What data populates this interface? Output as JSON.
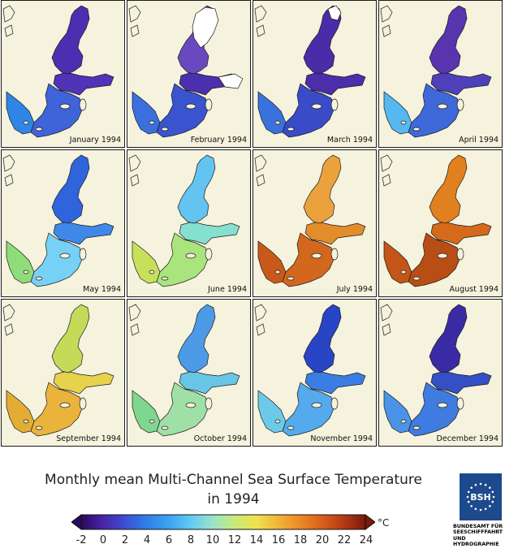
{
  "panels": [
    {
      "label": "January 1994",
      "colors": {
        "north": "#4c2fb0",
        "mid": "#5033b6",
        "south": "#3f63d8",
        "west": "#2f86e6"
      },
      "ice": 0
    },
    {
      "label": "February 1994",
      "colors": {
        "north": "#6a49c0",
        "mid": "#4a30ae",
        "south": "#3a53cf",
        "west": "#3b6fde"
      },
      "ice": 2
    },
    {
      "label": "March 1994",
      "colors": {
        "north": "#4a2ca8",
        "mid": "#4b2ea9",
        "south": "#3a4bc8",
        "west": "#3a72dd"
      },
      "ice": 1
    },
    {
      "label": "April 1994",
      "colors": {
        "north": "#5834ae",
        "mid": "#4e40bb",
        "south": "#3f68d9",
        "west": "#57b8f0"
      },
      "ice": 0
    },
    {
      "label": "May 1994",
      "colors": {
        "north": "#2f64dd",
        "mid": "#3f88e8",
        "south": "#77d0f5",
        "west": "#8fdc7a"
      },
      "ice": 0
    },
    {
      "label": "June 1994",
      "colors": {
        "north": "#63c3f1",
        "mid": "#86e0d0",
        "south": "#a9e47c",
        "west": "#c7e05a"
      },
      "ice": 0
    },
    {
      "label": "July 1994",
      "colors": {
        "north": "#eba23d",
        "mid": "#e28d2c",
        "south": "#d2671d",
        "west": "#c9591a"
      },
      "ice": 0
    },
    {
      "label": "August 1994",
      "colors": {
        "north": "#e0801f",
        "mid": "#d56a1c",
        "south": "#b84d16",
        "west": "#c45417"
      },
      "ice": 0
    },
    {
      "label": "September 1994",
      "colors": {
        "north": "#c5da58",
        "mid": "#e6d24b",
        "south": "#eab43c",
        "west": "#e3ad35"
      },
      "ice": 0
    },
    {
      "label": "October 1994",
      "colors": {
        "north": "#4d9be6",
        "mid": "#67c6e6",
        "south": "#9fe0a6",
        "west": "#7fd68f"
      },
      "ice": 0
    },
    {
      "label": "November 1994",
      "colors": {
        "north": "#2745c5",
        "mid": "#3a7ee3",
        "south": "#54aaec",
        "west": "#6ccae8"
      },
      "ice": 0
    },
    {
      "label": "December 1994",
      "colors": {
        "north": "#3a2ba5",
        "mid": "#3450c4",
        "south": "#3f7be0",
        "west": "#4a93e6"
      },
      "ice": 0
    }
  ],
  "title": {
    "line1": "Monthly mean Multi-Channel Sea Surface Temperature",
    "line2": "in 1994"
  },
  "colorbar": {
    "ticks": [
      "-2",
      "0",
      "2",
      "4",
      "6",
      "8",
      "10",
      "12",
      "14",
      "16",
      "18",
      "20",
      "22",
      "24"
    ],
    "unit": "°C",
    "colors": [
      "#2a0a5e",
      "#4a23a8",
      "#3c4fd2",
      "#2f7fe6",
      "#3aa3f0",
      "#62c9f2",
      "#9be3c9",
      "#c6ea7a",
      "#f0e24e",
      "#f3b43a",
      "#ec8a26",
      "#d9601b",
      "#b53a14",
      "#7a1a0c"
    ]
  },
  "logo": {
    "abbr": "BSH",
    "lines": [
      "BUNDESAMT FÜR",
      "SEESCHIFFFAHRT",
      "UND",
      "HYDROGRAPHIE"
    ]
  }
}
